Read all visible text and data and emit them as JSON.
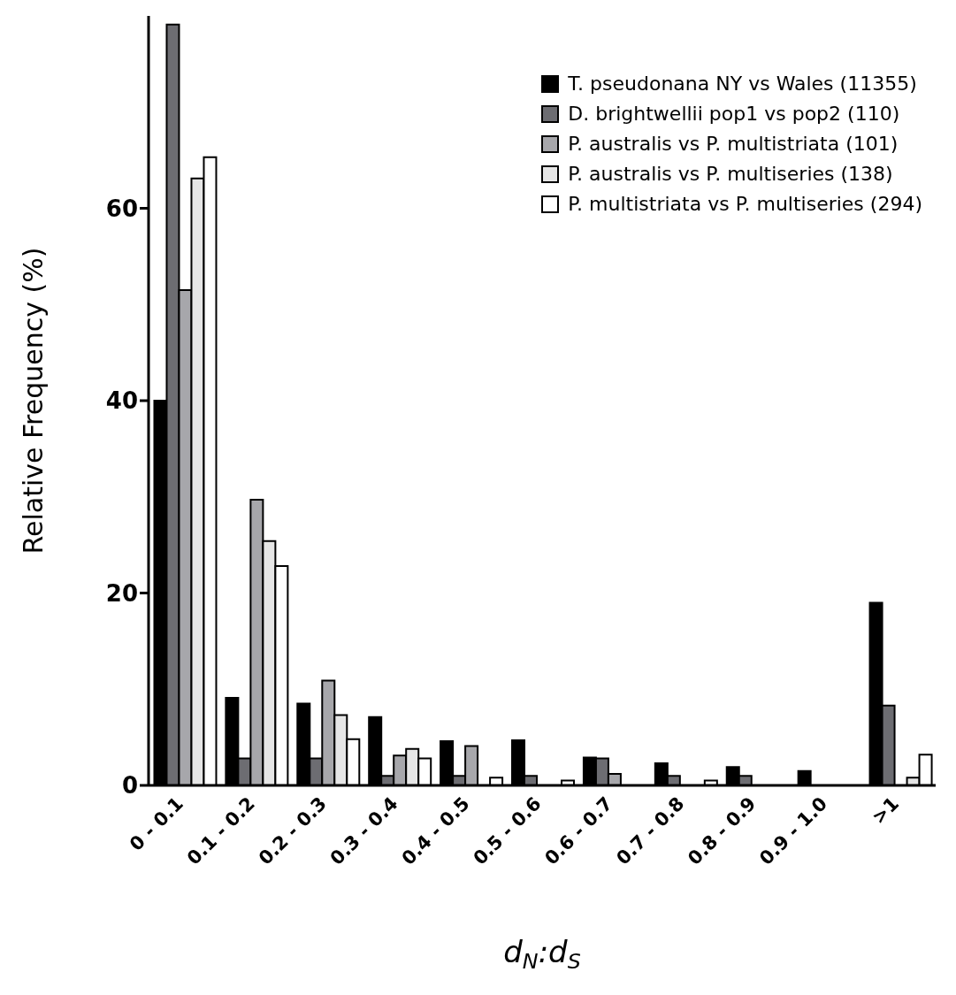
{
  "chart_data": {
    "type": "bar",
    "xlabel": "d$_{N}$:d$_{S}$",
    "ylabel": "Relative Frequency (%)",
    "categories": [
      "0 - 0.1",
      "0.1 - 0.2",
      "0.2 - 0.3",
      "0.3 - 0.4",
      "0.4 - 0.5",
      "0.5 - 0.6",
      "0.6 - 0.7",
      "0.7 - 0.8",
      "0.8 - 0.9",
      "0.9 - 1.0",
      ">1"
    ],
    "series": [
      {
        "name": "T. pseudonana NY vs Wales (11355)",
        "color": "#000000",
        "values": [
          40,
          9.1,
          8.5,
          7.1,
          4.6,
          4.7,
          2.9,
          2.3,
          1.9,
          1.5,
          19.0
        ]
      },
      {
        "name": "D. brightwellii pop1 vs pop2  (110)",
        "color": "#6d6d72",
        "values": [
          79.1,
          2.8,
          2.8,
          1.0,
          1.0,
          1.0,
          2.8,
          1.0,
          1.0,
          0,
          8.3
        ]
      },
      {
        "name": "P. australis vs P. multistriata  (101)",
        "color": "#a7a7ab",
        "values": [
          51.5,
          29.7,
          10.9,
          3.1,
          4.1,
          0,
          1.2,
          0,
          0,
          0,
          0
        ]
      },
      {
        "name": "P. australis vs P. multiseries  (138)",
        "color": "#e6e6e6",
        "values": [
          63.1,
          25.4,
          7.3,
          3.8,
          0,
          0,
          0,
          0,
          0,
          0,
          0.8
        ]
      },
      {
        "name": "P. multistriata vs P. multiseries (294)",
        "color": "#ffffff",
        "values": [
          65.3,
          22.8,
          4.8,
          2.8,
          0.8,
          0.5,
          0,
          0.5,
          0,
          0,
          3.2
        ]
      }
    ],
    "ylim": [
      0,
      80
    ],
    "yticks": [
      0,
      20,
      40,
      60
    ],
    "grid": false,
    "legend": "top right"
  }
}
